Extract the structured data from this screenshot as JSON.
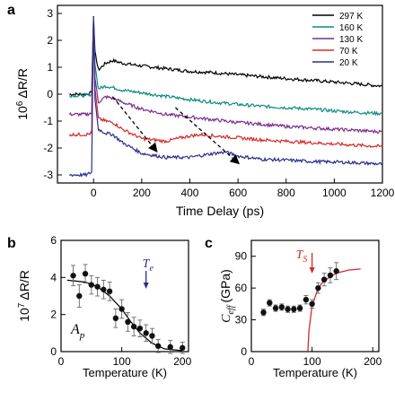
{
  "chart_data": [
    {
      "panel": "a",
      "type": "line",
      "xlabel": "Time Delay (ps)",
      "ylabel_prefix": "10",
      "ylabel_exp": "6",
      "ylabel_suffix": "ΔR/R",
      "xlim": [
        -150,
        1200
      ],
      "ylim": [
        -3.3,
        3.3
      ],
      "x_ticks": [
        0,
        200,
        400,
        600,
        800,
        1000,
        1200
      ],
      "y_ticks": [
        -3,
        -2,
        -1,
        0,
        1,
        2,
        3
      ],
      "legend_position": "top-right",
      "series": [
        {
          "name": "297 K",
          "color": "#000000",
          "points": [
            [
              -100,
              0.0
            ],
            [
              -30,
              0.0
            ],
            [
              -8,
              0.05
            ],
            [
              0,
              2.9
            ],
            [
              6,
              1.6
            ],
            [
              20,
              0.9
            ],
            [
              50,
              1.15
            ],
            [
              80,
              1.25
            ],
            [
              120,
              1.15
            ],
            [
              200,
              1.05
            ],
            [
              300,
              0.95
            ],
            [
              400,
              0.85
            ],
            [
              500,
              0.8
            ],
            [
              600,
              0.72
            ],
            [
              700,
              0.65
            ],
            [
              800,
              0.58
            ],
            [
              900,
              0.52
            ],
            [
              1000,
              0.45
            ],
            [
              1100,
              0.38
            ],
            [
              1200,
              0.3
            ]
          ]
        },
        {
          "name": "160 K",
          "color": "#0e8a83",
          "points": [
            [
              -100,
              -0.05
            ],
            [
              -30,
              -0.05
            ],
            [
              -8,
              0.0
            ],
            [
              0,
              2.85
            ],
            [
              6,
              1.1
            ],
            [
              20,
              0.2
            ],
            [
              50,
              0.3
            ],
            [
              80,
              0.25
            ],
            [
              120,
              0.15
            ],
            [
              200,
              0.05
            ],
            [
              300,
              -0.08
            ],
            [
              400,
              -0.2
            ],
            [
              500,
              -0.3
            ],
            [
              600,
              -0.38
            ],
            [
              700,
              -0.45
            ],
            [
              800,
              -0.5
            ],
            [
              900,
              -0.55
            ],
            [
              1000,
              -0.62
            ],
            [
              1100,
              -0.68
            ],
            [
              1200,
              -0.72
            ]
          ]
        },
        {
          "name": "130 K",
          "color": "#7b2c8e",
          "points": [
            [
              -100,
              -0.75
            ],
            [
              -30,
              -0.75
            ],
            [
              -8,
              -0.7
            ],
            [
              0,
              2.8
            ],
            [
              6,
              0.6
            ],
            [
              20,
              -0.3
            ],
            [
              50,
              -0.1
            ],
            [
              80,
              -0.15
            ],
            [
              120,
              -0.3
            ],
            [
              200,
              -0.55
            ],
            [
              300,
              -0.75
            ],
            [
              400,
              -0.85
            ],
            [
              500,
              -0.95
            ],
            [
              600,
              -1.05
            ],
            [
              700,
              -1.12
            ],
            [
              800,
              -1.2
            ],
            [
              900,
              -1.25
            ],
            [
              1000,
              -1.3
            ],
            [
              1100,
              -1.35
            ],
            [
              1200,
              -1.4
            ]
          ]
        },
        {
          "name": "70 K",
          "color": "#d42a2a",
          "points": [
            [
              -100,
              -1.5
            ],
            [
              -30,
              -1.5
            ],
            [
              -8,
              -1.45
            ],
            [
              0,
              2.8
            ],
            [
              6,
              0.2
            ],
            [
              20,
              -0.9
            ],
            [
              50,
              -1.0
            ],
            [
              80,
              -1.05
            ],
            [
              120,
              -1.3
            ],
            [
              200,
              -1.65
            ],
            [
              300,
              -1.75
            ],
            [
              400,
              -1.55
            ],
            [
              450,
              -1.5
            ],
            [
              500,
              -1.55
            ],
            [
              600,
              -1.62
            ],
            [
              700,
              -1.7
            ],
            [
              800,
              -1.75
            ],
            [
              900,
              -1.8
            ],
            [
              1000,
              -1.85
            ],
            [
              1100,
              -1.9
            ],
            [
              1200,
              -1.95
            ]
          ]
        },
        {
          "name": "20 K",
          "color": "#2b2f8c",
          "points": [
            [
              -100,
              -3.0
            ],
            [
              -30,
              -3.0
            ],
            [
              -8,
              -2.9
            ],
            [
              0,
              2.8
            ],
            [
              6,
              -0.2
            ],
            [
              20,
              -1.3
            ],
            [
              50,
              -1.45
            ],
            [
              80,
              -1.5
            ],
            [
              120,
              -1.8
            ],
            [
              200,
              -2.2
            ],
            [
              300,
              -2.35
            ],
            [
              400,
              -2.35
            ],
            [
              500,
              -2.2
            ],
            [
              550,
              -2.15
            ],
            [
              600,
              -2.3
            ],
            [
              700,
              -2.42
            ],
            [
              800,
              -2.45
            ],
            [
              900,
              -2.5
            ],
            [
              1000,
              -2.52
            ],
            [
              1100,
              -2.55
            ],
            [
              1200,
              -2.6
            ]
          ]
        }
      ],
      "arrows": [
        {
          "from": [
            80,
            -0.1
          ],
          "to": [
            260,
            -2.1
          ]
        },
        {
          "from": [
            340,
            -0.5
          ],
          "to": [
            600,
            -2.55
          ]
        }
      ]
    },
    {
      "panel": "b",
      "type": "scatter",
      "xlabel": "Temperature (K)",
      "ylabel_prefix": "10",
      "ylabel_exp": "7",
      "ylabel_suffix": "ΔR/R",
      "xlim": [
        0,
        210
      ],
      "ylim": [
        0,
        6
      ],
      "x_ticks": [
        0,
        100,
        200
      ],
      "y_ticks": [
        0,
        2,
        4,
        6
      ],
      "annotation_main": "A",
      "annotation_sub": "p",
      "marker_label_main": "T",
      "marker_label_sub": "e",
      "marker_x": 140,
      "marker_color": "#2b2f8c",
      "points": [
        [
          20,
          4.1,
          0.55
        ],
        [
          30,
          3.0,
          0.6
        ],
        [
          40,
          4.2,
          0.5
        ],
        [
          50,
          3.6,
          0.5
        ],
        [
          60,
          3.5,
          0.5
        ],
        [
          70,
          3.35,
          0.5
        ],
        [
          80,
          3.25,
          0.5
        ],
        [
          90,
          1.8,
          0.5
        ],
        [
          100,
          2.3,
          0.5
        ],
        [
          110,
          1.6,
          0.5
        ],
        [
          120,
          1.35,
          0.5
        ],
        [
          130,
          1.25,
          0.45
        ],
        [
          140,
          1.0,
          0.45
        ],
        [
          150,
          0.85,
          0.4
        ],
        [
          160,
          0.3,
          0.35
        ],
        [
          180,
          0.25,
          0.35
        ],
        [
          200,
          0.2,
          0.3
        ]
      ],
      "fit": [
        [
          10,
          3.85
        ],
        [
          40,
          3.75
        ],
        [
          60,
          3.5
        ],
        [
          80,
          3.0
        ],
        [
          100,
          2.3
        ],
        [
          115,
          1.6
        ],
        [
          130,
          1.0
        ],
        [
          150,
          0.45
        ],
        [
          170,
          0.15
        ],
        [
          200,
          0.05
        ]
      ]
    },
    {
      "panel": "c",
      "type": "scatter",
      "xlabel": "Temperature (K)",
      "ylabel_main": "C",
      "ylabel_sub": "eff",
      "ylabel_suffix": "(GPa)",
      "xlim": [
        0,
        210
      ],
      "ylim": [
        0,
        105
      ],
      "x_ticks": [
        0,
        100,
        200
      ],
      "y_ticks": [
        0,
        30,
        60,
        90
      ],
      "marker_label_main": "T",
      "marker_label_sub": "S",
      "marker_x": 100,
      "marker_color": "#d42a2a",
      "points": [
        [
          20,
          37,
          3
        ],
        [
          30,
          46,
          3
        ],
        [
          40,
          41,
          3
        ],
        [
          50,
          42,
          3
        ],
        [
          60,
          40,
          3
        ],
        [
          70,
          40,
          3
        ],
        [
          80,
          41,
          3
        ],
        [
          90,
          49,
          4
        ],
        [
          100,
          45,
          4
        ],
        [
          110,
          60,
          5
        ],
        [
          120,
          68,
          6
        ],
        [
          130,
          72,
          7
        ],
        [
          140,
          76,
          8
        ]
      ],
      "fit": [
        [
          93,
          0
        ],
        [
          95,
          20
        ],
        [
          100,
          43
        ],
        [
          110,
          60
        ],
        [
          120,
          67
        ],
        [
          140,
          74
        ],
        [
          160,
          77
        ],
        [
          180,
          78
        ]
      ]
    }
  ],
  "panel_labels": [
    "a",
    "b",
    "c"
  ]
}
